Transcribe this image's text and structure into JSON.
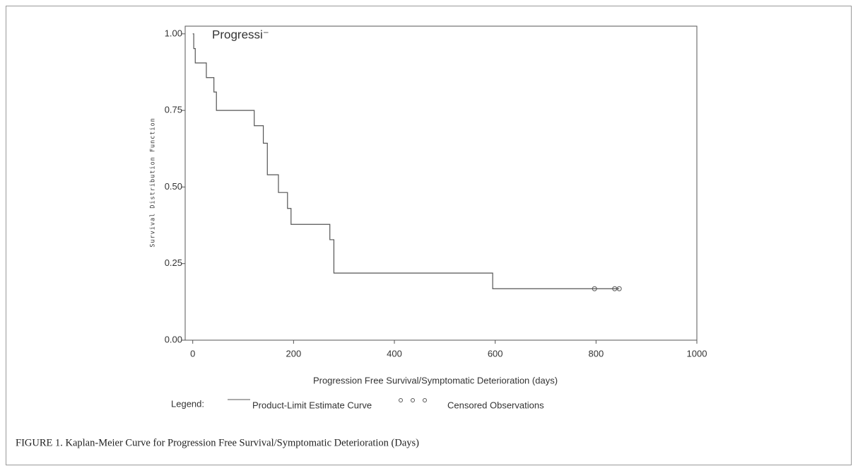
{
  "chart_data": {
    "type": "step",
    "title": "Progressi⁻",
    "x_label": "Progression Free Survival/Symptomatic Deterioration (days)",
    "y_label": "Survival Distribution Function",
    "legend_label": "Legend:",
    "caption": "FIGURE 1. Kaplan-Meier Curve for Progression Free Survival/Symptomatic Deterioration (Days)",
    "series": [
      {
        "name": "Product-Limit Estimate Curve",
        "color": "#555555",
        "x": [
          0,
          2,
          5,
          27,
          42,
          47,
          122,
          140,
          148,
          170,
          188,
          195,
          272,
          280,
          595,
          846
        ],
        "values": [
          1.0,
          0.952,
          0.905,
          0.857,
          0.81,
          0.75,
          0.7,
          0.643,
          0.54,
          0.482,
          0.43,
          0.378,
          0.328,
          0.219,
          0.168,
          0.168
        ]
      },
      {
        "name": "Censored Observations",
        "color": "#555555",
        "x": [
          797,
          837,
          846
        ],
        "values": [
          0.168,
          0.168,
          0.168
        ]
      }
    ],
    "xlim": [
      -15,
      1000
    ],
    "ylim": [
      0,
      1.025
    ],
    "xticks": [
      0,
      200,
      400,
      600,
      800,
      1000
    ],
    "yticks": [
      {
        "value": 0,
        "label": "0.00"
      },
      {
        "value": 0.25,
        "label": "0.25"
      },
      {
        "value": 0.5,
        "label": "0.50"
      },
      {
        "value": 0.75,
        "label": "0.75"
      },
      {
        "value": 1,
        "label": "1.00"
      }
    ]
  }
}
